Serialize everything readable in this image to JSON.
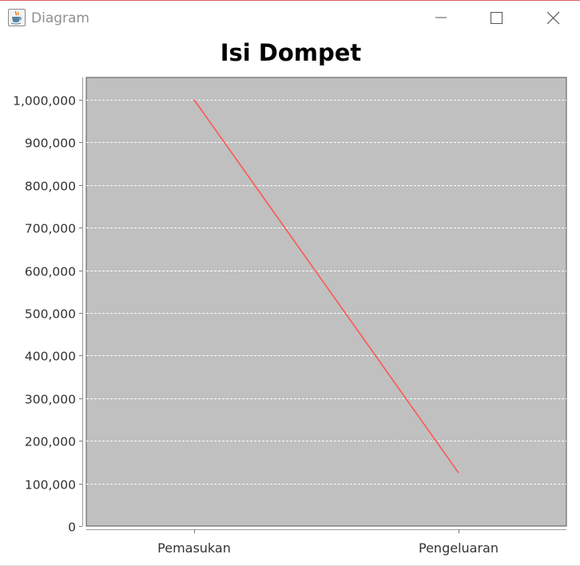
{
  "window": {
    "title": "Diagram",
    "icon": "java-coffee-cup-icon",
    "controls": [
      "minimize-icon",
      "maximize-icon",
      "close-icon"
    ]
  },
  "chart_data": {
    "type": "line",
    "title": "Isi Dompet",
    "xlabel": "",
    "ylabel": "",
    "categories": [
      "Pemasukan",
      "Pengeluaran"
    ],
    "series": [
      {
        "values": [
          1000000,
          125000
        ],
        "color": "#ff5555"
      }
    ],
    "ylim": [
      0,
      1000000
    ],
    "yticks": [
      0,
      100000,
      200000,
      300000,
      400000,
      500000,
      600000,
      700000,
      800000,
      900000,
      1000000
    ],
    "ytick_labels": [
      "0",
      "100,000",
      "200,000",
      "300,000",
      "400,000",
      "500,000",
      "600,000",
      "700,000",
      "800,000",
      "900,000",
      "1,000,000"
    ],
    "grid": true,
    "legend": "none",
    "plot_background": "#c0c0c0",
    "grid_color": "#ffffff"
  }
}
